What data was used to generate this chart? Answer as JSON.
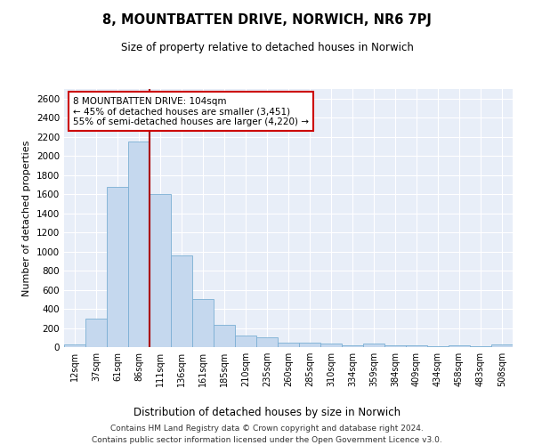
{
  "title": "8, MOUNTBATTEN DRIVE, NORWICH, NR6 7PJ",
  "subtitle": "Size of property relative to detached houses in Norwich",
  "xlabel": "Distribution of detached houses by size in Norwich",
  "ylabel": "Number of detached properties",
  "bar_color": "#c5d8ee",
  "bar_edge_color": "#7bafd4",
  "background_color": "#e8eef8",
  "grid_color": "#ffffff",
  "annotation_box_color": "#cc0000",
  "vline_color": "#aa0000",
  "vline_x_index": 4,
  "categories": [
    "12sqm",
    "37sqm",
    "61sqm",
    "86sqm",
    "111sqm",
    "136sqm",
    "161sqm",
    "185sqm",
    "210sqm",
    "235sqm",
    "260sqm",
    "285sqm",
    "310sqm",
    "334sqm",
    "359sqm",
    "384sqm",
    "409sqm",
    "434sqm",
    "458sqm",
    "483sqm",
    "508sqm"
  ],
  "values": [
    25,
    300,
    1680,
    2150,
    1600,
    960,
    505,
    235,
    125,
    100,
    50,
    50,
    35,
    15,
    35,
    15,
    20,
    10,
    20,
    5,
    25
  ],
  "annotation_lines": [
    "8 MOUNTBATTEN DRIVE: 104sqm",
    "← 45% of detached houses are smaller (3,451)",
    "55% of semi-detached houses are larger (4,220) →"
  ],
  "footer_line1": "Contains HM Land Registry data © Crown copyright and database right 2024.",
  "footer_line2": "Contains public sector information licensed under the Open Government Licence v3.0.",
  "ylim": [
    0,
    2700
  ],
  "yticks": [
    0,
    200,
    400,
    600,
    800,
    1000,
    1200,
    1400,
    1600,
    1800,
    2000,
    2200,
    2400,
    2600
  ]
}
